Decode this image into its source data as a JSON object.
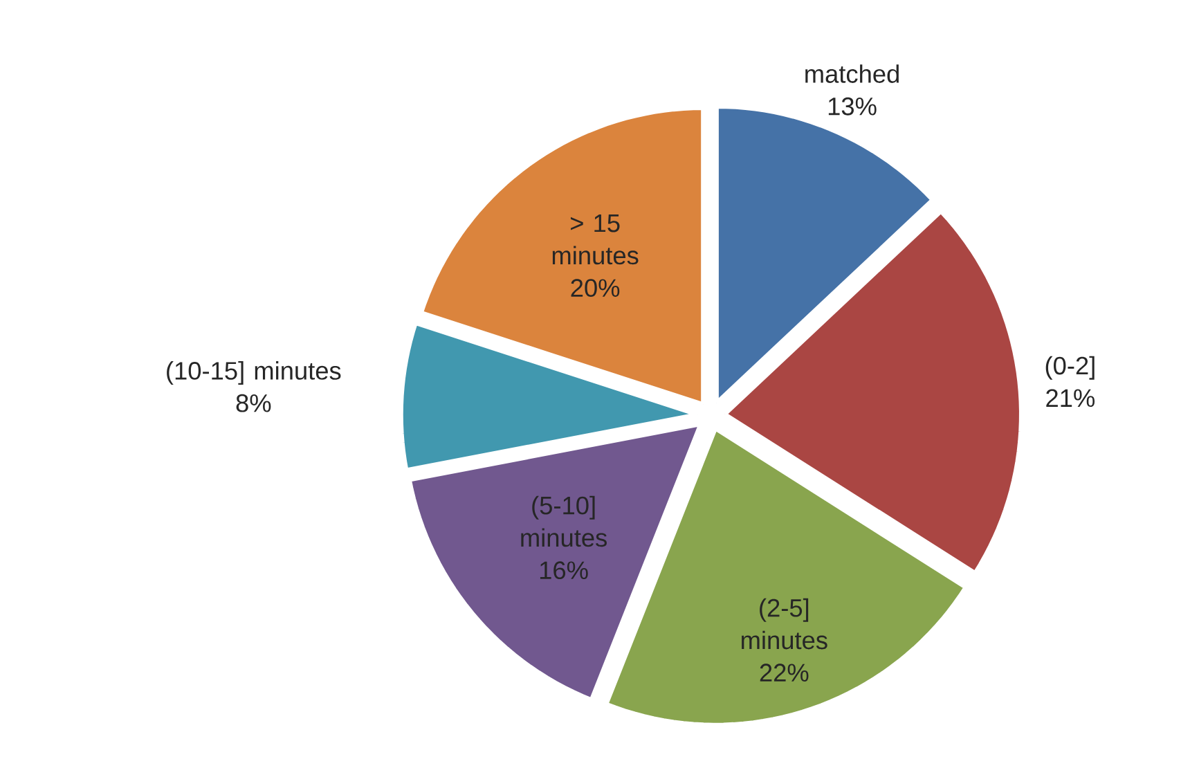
{
  "chart_data": {
    "type": "pie",
    "categories": [
      "matched",
      "(0-2]",
      "(2-5] minutes",
      "(5-10] minutes",
      "(10-15] minutes",
      "> 15 minutes"
    ],
    "values": [
      13,
      21,
      22,
      16,
      8,
      20
    ],
    "value_labels": [
      "13%",
      "21%",
      "22%",
      "16%",
      "8%",
      "20%"
    ],
    "colors": [
      "#4572a7",
      "#aa4643",
      "#89a54e",
      "#71588f",
      "#4198af",
      "#db843d"
    ]
  }
}
